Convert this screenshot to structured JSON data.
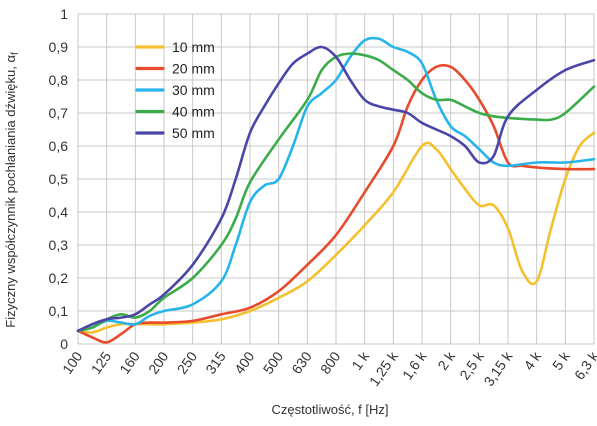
{
  "chart_data": {
    "type": "line",
    "title": "",
    "xlabel": "Częstotliwość, f [Hz]",
    "ylabel": "Fizyczny współczynnik pochłaniania dźwięku, α",
    "ylabel_subscript": "f",
    "categories": [
      "100",
      "125",
      "160",
      "200",
      "250",
      "315",
      "400",
      "500",
      "630",
      "800",
      "1 k",
      "1,25 k",
      "1,6 k",
      "2 k",
      "2,5 k",
      "3,15 k",
      "4 k",
      "5 k",
      "6,3 k"
    ],
    "yticks": [
      "0",
      "0,1",
      "0,2",
      "0,3",
      "0,4",
      "0,5",
      "0,6",
      "0,7",
      "0,8",
      "0,9",
      "1"
    ],
    "ylim": [
      0,
      1
    ],
    "grid": true,
    "legend_position": "top-left",
    "series": [
      {
        "name": "10 mm",
        "color": "#f5c030",
        "points": [
          [
            0,
            0.04
          ],
          [
            0.5,
            0.035
          ],
          [
            1,
            0.05
          ],
          [
            1.5,
            0.06
          ],
          [
            2,
            0.06
          ],
          [
            2.5,
            0.06
          ],
          [
            3,
            0.06
          ],
          [
            4,
            0.065
          ],
          [
            5,
            0.075
          ],
          [
            6,
            0.1
          ],
          [
            7,
            0.14
          ],
          [
            8,
            0.19
          ],
          [
            9,
            0.27
          ],
          [
            10,
            0.36
          ],
          [
            11,
            0.46
          ],
          [
            12,
            0.6
          ],
          [
            12.5,
            0.59
          ],
          [
            13,
            0.53
          ],
          [
            13.5,
            0.47
          ],
          [
            14,
            0.42
          ],
          [
            14.5,
            0.42
          ],
          [
            15,
            0.35
          ],
          [
            15.5,
            0.22
          ],
          [
            16,
            0.19
          ],
          [
            16.5,
            0.35
          ],
          [
            17,
            0.5
          ],
          [
            17.5,
            0.6
          ],
          [
            18,
            0.64
          ]
        ]
      },
      {
        "name": "20 mm",
        "color": "#e84a2c",
        "points": [
          [
            0,
            0.04
          ],
          [
            0.5,
            0.02
          ],
          [
            1,
            0.005
          ],
          [
            1.5,
            0.03
          ],
          [
            2,
            0.06
          ],
          [
            2.5,
            0.065
          ],
          [
            3,
            0.065
          ],
          [
            4,
            0.07
          ],
          [
            5,
            0.09
          ],
          [
            6,
            0.11
          ],
          [
            7,
            0.16
          ],
          [
            8,
            0.24
          ],
          [
            9,
            0.33
          ],
          [
            10,
            0.46
          ],
          [
            11,
            0.6
          ],
          [
            11.5,
            0.72
          ],
          [
            12,
            0.8
          ],
          [
            12.5,
            0.84
          ],
          [
            13,
            0.84
          ],
          [
            13.5,
            0.8
          ],
          [
            14,
            0.74
          ],
          [
            14.5,
            0.66
          ],
          [
            15,
            0.55
          ],
          [
            15.5,
            0.54
          ],
          [
            16,
            0.535
          ],
          [
            17,
            0.53
          ],
          [
            18,
            0.53
          ]
        ]
      },
      {
        "name": "30 mm",
        "color": "#26b4ea",
        "points": [
          [
            0,
            0.04
          ],
          [
            0.5,
            0.05
          ],
          [
            1,
            0.07
          ],
          [
            1.5,
            0.065
          ],
          [
            2,
            0.06
          ],
          [
            2.5,
            0.085
          ],
          [
            3,
            0.1
          ],
          [
            4,
            0.12
          ],
          [
            5,
            0.19
          ],
          [
            5.5,
            0.3
          ],
          [
            6,
            0.43
          ],
          [
            6.5,
            0.48
          ],
          [
            7,
            0.5
          ],
          [
            7.5,
            0.6
          ],
          [
            8,
            0.72
          ],
          [
            8.5,
            0.76
          ],
          [
            9,
            0.8
          ],
          [
            9.5,
            0.87
          ],
          [
            10,
            0.92
          ],
          [
            10.5,
            0.925
          ],
          [
            11,
            0.9
          ],
          [
            11.5,
            0.885
          ],
          [
            12,
            0.85
          ],
          [
            12.5,
            0.74
          ],
          [
            13,
            0.66
          ],
          [
            13.5,
            0.63
          ],
          [
            14,
            0.59
          ],
          [
            14.5,
            0.55
          ],
          [
            15,
            0.54
          ],
          [
            16,
            0.55
          ],
          [
            17,
            0.55
          ],
          [
            18,
            0.56
          ]
        ]
      },
      {
        "name": "40 mm",
        "color": "#3cab4a",
        "points": [
          [
            0,
            0.04
          ],
          [
            0.5,
            0.05
          ],
          [
            1,
            0.075
          ],
          [
            1.5,
            0.09
          ],
          [
            2,
            0.08
          ],
          [
            2.5,
            0.1
          ],
          [
            3,
            0.14
          ],
          [
            4,
            0.2
          ],
          [
            5,
            0.3
          ],
          [
            5.5,
            0.38
          ],
          [
            6,
            0.49
          ],
          [
            7,
            0.62
          ],
          [
            8,
            0.74
          ],
          [
            8.5,
            0.83
          ],
          [
            9,
            0.87
          ],
          [
            9.5,
            0.88
          ],
          [
            10,
            0.875
          ],
          [
            10.5,
            0.86
          ],
          [
            11,
            0.83
          ],
          [
            11.5,
            0.8
          ],
          [
            12,
            0.76
          ],
          [
            12.5,
            0.74
          ],
          [
            13,
            0.74
          ],
          [
            13.5,
            0.72
          ],
          [
            14,
            0.7
          ],
          [
            14.5,
            0.69
          ],
          [
            15,
            0.685
          ],
          [
            16,
            0.68
          ],
          [
            16.5,
            0.68
          ],
          [
            17,
            0.7
          ],
          [
            18,
            0.78
          ]
        ]
      },
      {
        "name": "50 mm",
        "color": "#4a46a8",
        "points": [
          [
            0,
            0.04
          ],
          [
            0.5,
            0.06
          ],
          [
            1,
            0.075
          ],
          [
            1.5,
            0.08
          ],
          [
            2,
            0.09
          ],
          [
            2.5,
            0.12
          ],
          [
            3,
            0.15
          ],
          [
            4,
            0.24
          ],
          [
            5,
            0.38
          ],
          [
            5.5,
            0.5
          ],
          [
            6,
            0.64
          ],
          [
            6.5,
            0.72
          ],
          [
            7,
            0.79
          ],
          [
            7.5,
            0.85
          ],
          [
            8,
            0.88
          ],
          [
            8.5,
            0.9
          ],
          [
            9,
            0.87
          ],
          [
            9.5,
            0.8
          ],
          [
            10,
            0.74
          ],
          [
            10.5,
            0.72
          ],
          [
            11,
            0.71
          ],
          [
            11.5,
            0.7
          ],
          [
            12,
            0.67
          ],
          [
            12.5,
            0.65
          ],
          [
            13,
            0.63
          ],
          [
            13.5,
            0.6
          ],
          [
            14,
            0.55
          ],
          [
            14.5,
            0.57
          ],
          [
            15,
            0.69
          ],
          [
            16,
            0.77
          ],
          [
            17,
            0.83
          ],
          [
            18,
            0.86
          ]
        ]
      }
    ]
  }
}
